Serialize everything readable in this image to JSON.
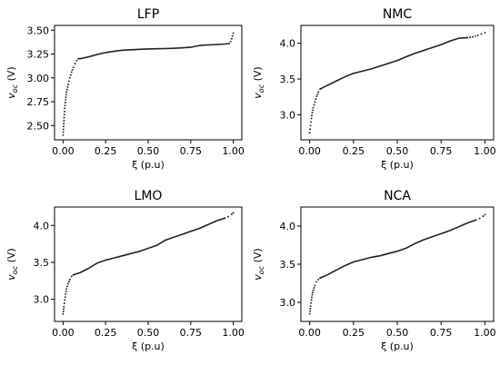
{
  "chart_data": [
    {
      "type": "line",
      "title": "LFP",
      "xlabel": "ξ (p.u)",
      "ylabel_main": "v",
      "ylabel_sub": "oc",
      "ylabel_unit": " (V)",
      "xlim": [
        -0.05,
        1.05
      ],
      "ylim": [
        2.35,
        3.55
      ],
      "xticks": [
        0.0,
        0.25,
        0.5,
        0.75,
        1.0
      ],
      "xtick_labels": [
        "0.00",
        "0.25",
        "0.50",
        "0.75",
        "1.00"
      ],
      "yticks": [
        2.5,
        2.75,
        3.0,
        3.25,
        3.5
      ],
      "ytick_labels": [
        "2.50",
        "2.75",
        "3.00",
        "3.25",
        "3.50"
      ],
      "dotted": [
        [
          0.0,
          2.4
        ],
        [
          0.005,
          2.55
        ],
        [
          0.01,
          2.68
        ],
        [
          0.015,
          2.77
        ],
        [
          0.02,
          2.85
        ],
        [
          0.03,
          2.93
        ],
        [
          0.04,
          3.0
        ],
        [
          0.05,
          3.06
        ],
        [
          0.06,
          3.11
        ],
        [
          0.07,
          3.15
        ],
        [
          0.08,
          3.18
        ],
        [
          0.09,
          3.2
        ]
      ],
      "solid": [
        [
          0.09,
          3.2
        ],
        [
          0.1,
          3.2
        ],
        [
          0.15,
          3.22
        ],
        [
          0.2,
          3.245
        ],
        [
          0.25,
          3.265
        ],
        [
          0.3,
          3.28
        ],
        [
          0.35,
          3.29
        ],
        [
          0.4,
          3.295
        ],
        [
          0.45,
          3.3
        ],
        [
          0.5,
          3.303
        ],
        [
          0.55,
          3.305
        ],
        [
          0.6,
          3.307
        ],
        [
          0.65,
          3.31
        ],
        [
          0.7,
          3.315
        ],
        [
          0.75,
          3.32
        ],
        [
          0.8,
          3.34
        ],
        [
          0.85,
          3.345
        ],
        [
          0.9,
          3.35
        ],
        [
          0.95,
          3.355
        ],
        [
          0.975,
          3.36
        ]
      ],
      "dotted_end": [
        [
          0.975,
          3.36
        ],
        [
          0.985,
          3.38
        ],
        [
          0.99,
          3.41
        ],
        [
          0.995,
          3.44
        ],
        [
          1.0,
          3.47
        ]
      ]
    },
    {
      "type": "line",
      "title": "NMC",
      "xlabel": "ξ (p.u)",
      "ylabel_main": "v",
      "ylabel_sub": "oc",
      "ylabel_unit": " (V)",
      "xlim": [
        -0.05,
        1.05
      ],
      "ylim": [
        2.65,
        4.25
      ],
      "xticks": [
        0.0,
        0.25,
        0.5,
        0.75,
        1.0
      ],
      "xtick_labels": [
        "0.00",
        "0.25",
        "0.50",
        "0.75",
        "1.00"
      ],
      "yticks": [
        3.0,
        3.5,
        4.0
      ],
      "ytick_labels": [
        "3.0",
        "3.5",
        "4.0"
      ],
      "dotted": [
        [
          0.0,
          2.75
        ],
        [
          0.005,
          2.85
        ],
        [
          0.01,
          2.95
        ],
        [
          0.015,
          3.03
        ],
        [
          0.02,
          3.1
        ],
        [
          0.03,
          3.18
        ],
        [
          0.04,
          3.26
        ],
        [
          0.05,
          3.32
        ],
        [
          0.06,
          3.36
        ]
      ],
      "solid": [
        [
          0.06,
          3.36
        ],
        [
          0.1,
          3.41
        ],
        [
          0.15,
          3.47
        ],
        [
          0.2,
          3.53
        ],
        [
          0.25,
          3.58
        ],
        [
          0.3,
          3.61
        ],
        [
          0.35,
          3.64
        ],
        [
          0.4,
          3.68
        ],
        [
          0.45,
          3.72
        ],
        [
          0.5,
          3.76
        ],
        [
          0.55,
          3.81
        ],
        [
          0.6,
          3.86
        ],
        [
          0.65,
          3.9
        ],
        [
          0.7,
          3.94
        ],
        [
          0.75,
          3.98
        ],
        [
          0.8,
          4.03
        ],
        [
          0.85,
          4.07
        ],
        [
          0.9,
          4.08
        ]
      ],
      "dotted_end": [
        [
          0.9,
          4.08
        ],
        [
          0.93,
          4.09
        ],
        [
          0.96,
          4.11
        ],
        [
          0.98,
          4.13
        ],
        [
          1.0,
          4.15
        ]
      ]
    },
    {
      "type": "line",
      "title": "LMO",
      "xlabel": "ξ (p.u)",
      "ylabel_main": "v",
      "ylabel_sub": "oc",
      "ylabel_unit": " (V)",
      "xlim": [
        -0.05,
        1.05
      ],
      "ylim": [
        2.7,
        4.25
      ],
      "xticks": [
        0.0,
        0.25,
        0.5,
        0.75,
        1.0
      ],
      "xtick_labels": [
        "0.00",
        "0.25",
        "0.50",
        "0.75",
        "1.00"
      ],
      "yticks": [
        3.0,
        3.5,
        4.0
      ],
      "ytick_labels": [
        "3.0",
        "3.5",
        "4.0"
      ],
      "dotted": [
        [
          0.0,
          2.8
        ],
        [
          0.005,
          2.9
        ],
        [
          0.01,
          2.99
        ],
        [
          0.015,
          3.07
        ],
        [
          0.02,
          3.14
        ],
        [
          0.03,
          3.21
        ],
        [
          0.04,
          3.27
        ],
        [
          0.05,
          3.31
        ],
        [
          0.06,
          3.33
        ]
      ],
      "solid": [
        [
          0.06,
          3.33
        ],
        [
          0.1,
          3.36
        ],
        [
          0.15,
          3.42
        ],
        [
          0.2,
          3.49
        ],
        [
          0.25,
          3.53
        ],
        [
          0.3,
          3.56
        ],
        [
          0.35,
          3.59
        ],
        [
          0.4,
          3.62
        ],
        [
          0.45,
          3.65
        ],
        [
          0.5,
          3.69
        ],
        [
          0.55,
          3.73
        ],
        [
          0.6,
          3.8
        ],
        [
          0.65,
          3.84
        ],
        [
          0.7,
          3.88
        ],
        [
          0.75,
          3.92
        ],
        [
          0.8,
          3.96
        ],
        [
          0.85,
          4.01
        ],
        [
          0.9,
          4.06
        ],
        [
          0.95,
          4.1
        ]
      ],
      "dotted_end": [
        [
          0.95,
          4.1
        ],
        [
          0.97,
          4.12
        ],
        [
          0.99,
          4.15
        ],
        [
          1.0,
          4.17
        ]
      ]
    },
    {
      "type": "line",
      "title": "NCA",
      "xlabel": "ξ (p.u)",
      "ylabel_main": "v",
      "ylabel_sub": "oc",
      "ylabel_unit": " (V)",
      "xlim": [
        -0.05,
        1.05
      ],
      "ylim": [
        2.75,
        4.25
      ],
      "xticks": [
        0.0,
        0.25,
        0.5,
        0.75,
        1.0
      ],
      "xtick_labels": [
        "0.00",
        "0.25",
        "0.50",
        "0.75",
        "1.00"
      ],
      "yticks": [
        3.0,
        3.5,
        4.0
      ],
      "ytick_labels": [
        "3.0",
        "3.5",
        "4.0"
      ],
      "dotted": [
        [
          0.0,
          2.85
        ],
        [
          0.005,
          2.95
        ],
        [
          0.01,
          3.03
        ],
        [
          0.015,
          3.1
        ],
        [
          0.02,
          3.16
        ],
        [
          0.03,
          3.22
        ],
        [
          0.04,
          3.27
        ],
        [
          0.05,
          3.3
        ],
        [
          0.06,
          3.32
        ]
      ],
      "solid": [
        [
          0.06,
          3.32
        ],
        [
          0.1,
          3.36
        ],
        [
          0.15,
          3.42
        ],
        [
          0.2,
          3.48
        ],
        [
          0.25,
          3.53
        ],
        [
          0.3,
          3.56
        ],
        [
          0.35,
          3.59
        ],
        [
          0.4,
          3.61
        ],
        [
          0.45,
          3.64
        ],
        [
          0.5,
          3.67
        ],
        [
          0.55,
          3.71
        ],
        [
          0.6,
          3.77
        ],
        [
          0.65,
          3.82
        ],
        [
          0.7,
          3.86
        ],
        [
          0.75,
          3.9
        ],
        [
          0.8,
          3.94
        ],
        [
          0.85,
          3.99
        ],
        [
          0.9,
          4.04
        ],
        [
          0.95,
          4.08
        ]
      ],
      "dotted_end": [
        [
          0.95,
          4.08
        ],
        [
          0.97,
          4.1
        ],
        [
          0.99,
          4.13
        ],
        [
          1.0,
          4.15
        ]
      ]
    }
  ]
}
